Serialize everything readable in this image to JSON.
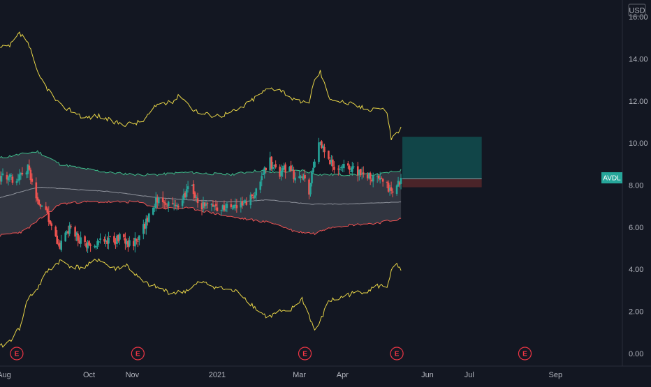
{
  "chart_data": {
    "type": "candlestick",
    "symbol": "AVDL",
    "currency": "USD",
    "last_price": 8.35,
    "y_range": [
      -0.6,
      16.8
    ],
    "y_ticks": [
      "16.00",
      "14.00",
      "12.00",
      "10.00",
      "8.00",
      "6.00",
      "4.00",
      "2.00",
      "0.00"
    ],
    "y_tick_values": [
      16,
      14,
      12,
      10,
      8,
      6,
      4,
      2,
      0
    ],
    "x_ticks": [
      "Aug",
      "Oct",
      "Nov",
      "2021",
      "Mar",
      "Apr",
      "Jun",
      "Jul",
      "Sep"
    ],
    "x_tick_dates": [
      "2020-08-01",
      "2020-10-01",
      "2020-11-01",
      "2021-01-01",
      "2021-03-01",
      "2021-04-01",
      "2021-06-01",
      "2021-07-01",
      "2021-09-01"
    ],
    "x_range": [
      "2020-07-29",
      "2021-10-19"
    ],
    "earnings_dates": [
      "2020-08-10",
      "2020-11-05",
      "2021-03-05",
      "2021-05-10",
      "2021-08-10"
    ],
    "earnings_marker_label": "E",
    "close_anchors": [
      [
        "2020-07-29",
        8.4
      ],
      [
        "2020-08-10",
        8.3
      ],
      [
        "2020-08-18",
        8.8
      ],
      [
        "2020-08-25",
        7.3
      ],
      [
        "2020-09-01",
        6.7
      ],
      [
        "2020-09-05",
        5.7
      ],
      [
        "2020-09-10",
        5.0
      ],
      [
        "2020-09-16",
        5.9
      ],
      [
        "2020-09-20",
        5.8
      ],
      [
        "2020-09-27",
        5.2
      ],
      [
        "2020-10-04",
        5.0
      ],
      [
        "2020-10-10",
        5.5
      ],
      [
        "2020-10-18",
        5.3
      ],
      [
        "2020-10-24",
        5.6
      ],
      [
        "2020-10-31",
        5.1
      ],
      [
        "2020-11-06",
        5.6
      ],
      [
        "2020-11-13",
        6.5
      ],
      [
        "2020-11-20",
        7.5
      ],
      [
        "2020-11-28",
        7.0
      ],
      [
        "2020-12-06",
        7.2
      ],
      [
        "2020-12-13",
        8.0
      ],
      [
        "2020-12-20",
        7.0
      ],
      [
        "2020-12-27",
        7.0
      ],
      [
        "2021-01-03",
        6.9
      ],
      [
        "2021-01-10",
        6.9
      ],
      [
        "2021-01-17",
        7.0
      ],
      [
        "2021-01-24",
        7.2
      ],
      [
        "2021-01-31",
        8.1
      ],
      [
        "2021-02-07",
        9.2
      ],
      [
        "2021-02-14",
        8.5
      ],
      [
        "2021-02-21",
        8.9
      ],
      [
        "2021-02-26",
        8.4
      ],
      [
        "2021-03-03",
        8.4
      ],
      [
        "2021-03-08",
        7.7
      ],
      [
        "2021-03-12",
        9.3
      ],
      [
        "2021-03-16",
        10.0
      ],
      [
        "2021-03-22",
        9.1
      ],
      [
        "2021-03-29",
        8.8
      ],
      [
        "2021-04-05",
        8.9
      ],
      [
        "2021-04-12",
        8.6
      ],
      [
        "2021-04-19",
        8.5
      ],
      [
        "2021-04-26",
        8.3
      ],
      [
        "2021-05-03",
        7.9
      ],
      [
        "2021-05-06",
        7.6
      ],
      [
        "2021-05-10",
        7.9
      ],
      [
        "2021-05-13",
        8.35
      ]
    ],
    "bollinger_bands": {
      "middle": [
        [
          "2020-07-29",
          7.4
        ],
        [
          "2020-08-25",
          7.9
        ],
        [
          "2020-10-15",
          7.7
        ],
        [
          "2020-11-20",
          7.4
        ],
        [
          "2020-12-13",
          7.3
        ],
        [
          "2021-01-10",
          7.2
        ],
        [
          "2021-02-07",
          7.3
        ],
        [
          "2021-03-08",
          7.1
        ],
        [
          "2021-04-05",
          7.1
        ],
        [
          "2021-05-13",
          7.2
        ]
      ],
      "upper": [
        [
          "2020-07-29",
          9.3
        ],
        [
          "2020-08-25",
          9.6
        ],
        [
          "2020-09-10",
          9.0
        ],
        [
          "2020-09-25",
          8.8
        ],
        [
          "2020-10-15",
          8.6
        ],
        [
          "2020-11-05",
          8.5
        ],
        [
          "2020-11-20",
          8.5
        ],
        [
          "2020-12-06",
          8.6
        ],
        [
          "2020-12-13",
          8.6
        ],
        [
          "2021-01-10",
          8.5
        ],
        [
          "2021-01-31",
          8.7
        ],
        [
          "2021-02-10",
          8.6
        ],
        [
          "2021-03-03",
          8.7
        ],
        [
          "2021-03-16",
          8.5
        ],
        [
          "2021-04-05",
          8.5
        ],
        [
          "2021-04-26",
          8.5
        ],
        [
          "2021-05-13",
          8.7
        ]
      ],
      "lower": [
        [
          "2020-07-29",
          5.6
        ],
        [
          "2020-08-15",
          5.8
        ],
        [
          "2020-08-25",
          6.3
        ],
        [
          "2020-09-10",
          7.1
        ],
        [
          "2020-09-25",
          7.2
        ],
        [
          "2020-10-15",
          7.2
        ],
        [
          "2020-11-05",
          7.2
        ],
        [
          "2020-11-20",
          6.9
        ],
        [
          "2020-12-13",
          6.9
        ],
        [
          "2021-01-10",
          6.5
        ],
        [
          "2021-02-10",
          6.2
        ],
        [
          "2021-02-26",
          5.8
        ],
        [
          "2021-03-12",
          5.7
        ],
        [
          "2021-03-22",
          6.0
        ],
        [
          "2021-04-05",
          6.1
        ],
        [
          "2021-04-26",
          6.2
        ],
        [
          "2021-05-13",
          6.4
        ]
      ]
    },
    "envelope_bands": {
      "upper": [
        [
          "2020-07-29",
          14.5
        ],
        [
          "2020-08-05",
          14.6
        ],
        [
          "2020-08-12",
          15.2
        ],
        [
          "2020-08-18",
          14.8
        ],
        [
          "2020-08-25",
          13.3
        ],
        [
          "2020-09-01",
          12.6
        ],
        [
          "2020-09-10",
          11.8
        ],
        [
          "2020-09-20",
          11.5
        ],
        [
          "2020-09-28",
          11.2
        ],
        [
          "2020-10-08",
          11.3
        ],
        [
          "2020-10-18",
          11.0
        ],
        [
          "2020-10-28",
          10.9
        ],
        [
          "2020-11-08",
          11.0
        ],
        [
          "2020-11-20",
          11.9
        ],
        [
          "2020-11-28",
          11.9
        ],
        [
          "2020-12-06",
          12.3
        ],
        [
          "2020-12-13",
          11.7
        ],
        [
          "2020-12-20",
          11.4
        ],
        [
          "2021-01-03",
          11.3
        ],
        [
          "2021-01-17",
          11.6
        ],
        [
          "2021-01-31",
          12.3
        ],
        [
          "2021-02-07",
          12.6
        ],
        [
          "2021-02-14",
          12.6
        ],
        [
          "2021-02-21",
          12.3
        ],
        [
          "2021-02-26",
          12.0
        ],
        [
          "2021-03-03",
          11.9
        ],
        [
          "2021-03-08",
          12.0
        ],
        [
          "2021-03-12",
          13.0
        ],
        [
          "2021-03-16",
          13.4
        ],
        [
          "2021-03-22",
          12.2
        ],
        [
          "2021-03-29",
          12.0
        ],
        [
          "2021-04-05",
          11.9
        ],
        [
          "2021-04-19",
          11.6
        ],
        [
          "2021-04-26",
          11.7
        ],
        [
          "2021-05-03",
          11.5
        ],
        [
          "2021-05-06",
          10.2
        ],
        [
          "2021-05-10",
          10.5
        ],
        [
          "2021-05-13",
          10.7
        ]
      ],
      "lower": [
        [
          "2020-07-29",
          0.3
        ],
        [
          "2020-08-05",
          0.6
        ],
        [
          "2020-08-12",
          1.2
        ],
        [
          "2020-08-18",
          2.6
        ],
        [
          "2020-08-25",
          3.1
        ],
        [
          "2020-09-01",
          3.9
        ],
        [
          "2020-09-10",
          4.4
        ],
        [
          "2020-09-20",
          4.1
        ],
        [
          "2020-09-28",
          4.1
        ],
        [
          "2020-10-08",
          4.5
        ],
        [
          "2020-10-18",
          4.0
        ],
        [
          "2020-10-28",
          4.2
        ],
        [
          "2020-11-08",
          3.4
        ],
        [
          "2020-11-20",
          3.1
        ],
        [
          "2020-11-28",
          2.9
        ],
        [
          "2020-12-06",
          2.9
        ],
        [
          "2020-12-13",
          3.1
        ],
        [
          "2020-12-20",
          3.4
        ],
        [
          "2021-01-03",
          3.1
        ],
        [
          "2021-01-17",
          2.9
        ],
        [
          "2021-01-31",
          2.0
        ],
        [
          "2021-02-07",
          1.7
        ],
        [
          "2021-02-14",
          2.0
        ],
        [
          "2021-02-21",
          1.9
        ],
        [
          "2021-02-26",
          2.3
        ],
        [
          "2021-03-03",
          2.6
        ],
        [
          "2021-03-08",
          1.8
        ],
        [
          "2021-03-12",
          1.1
        ],
        [
          "2021-03-16",
          1.5
        ],
        [
          "2021-03-22",
          2.5
        ],
        [
          "2021-03-29",
          2.6
        ],
        [
          "2021-04-05",
          2.8
        ],
        [
          "2021-04-19",
          3.0
        ],
        [
          "2021-04-26",
          3.2
        ],
        [
          "2021-05-03",
          3.2
        ],
        [
          "2021-05-06",
          3.9
        ],
        [
          "2021-05-10",
          4.2
        ],
        [
          "2021-05-13",
          3.9
        ]
      ]
    },
    "position_tool": {
      "start": "2021-05-14",
      "end": "2021-07-10",
      "entry": 8.3,
      "target": 10.3,
      "stop": 7.9
    },
    "colors": {
      "up": "#26a69a",
      "down": "#ef5350",
      "envelope": "#e8d547",
      "bb_upper": "#3dbb8a",
      "bb_lower": "#f05252",
      "bb_middle": "#8f939c",
      "bb_fill": "#4a4f5a",
      "target_zone": "#114548",
      "stop_zone": "#4a2429",
      "background": "#131722"
    }
  }
}
